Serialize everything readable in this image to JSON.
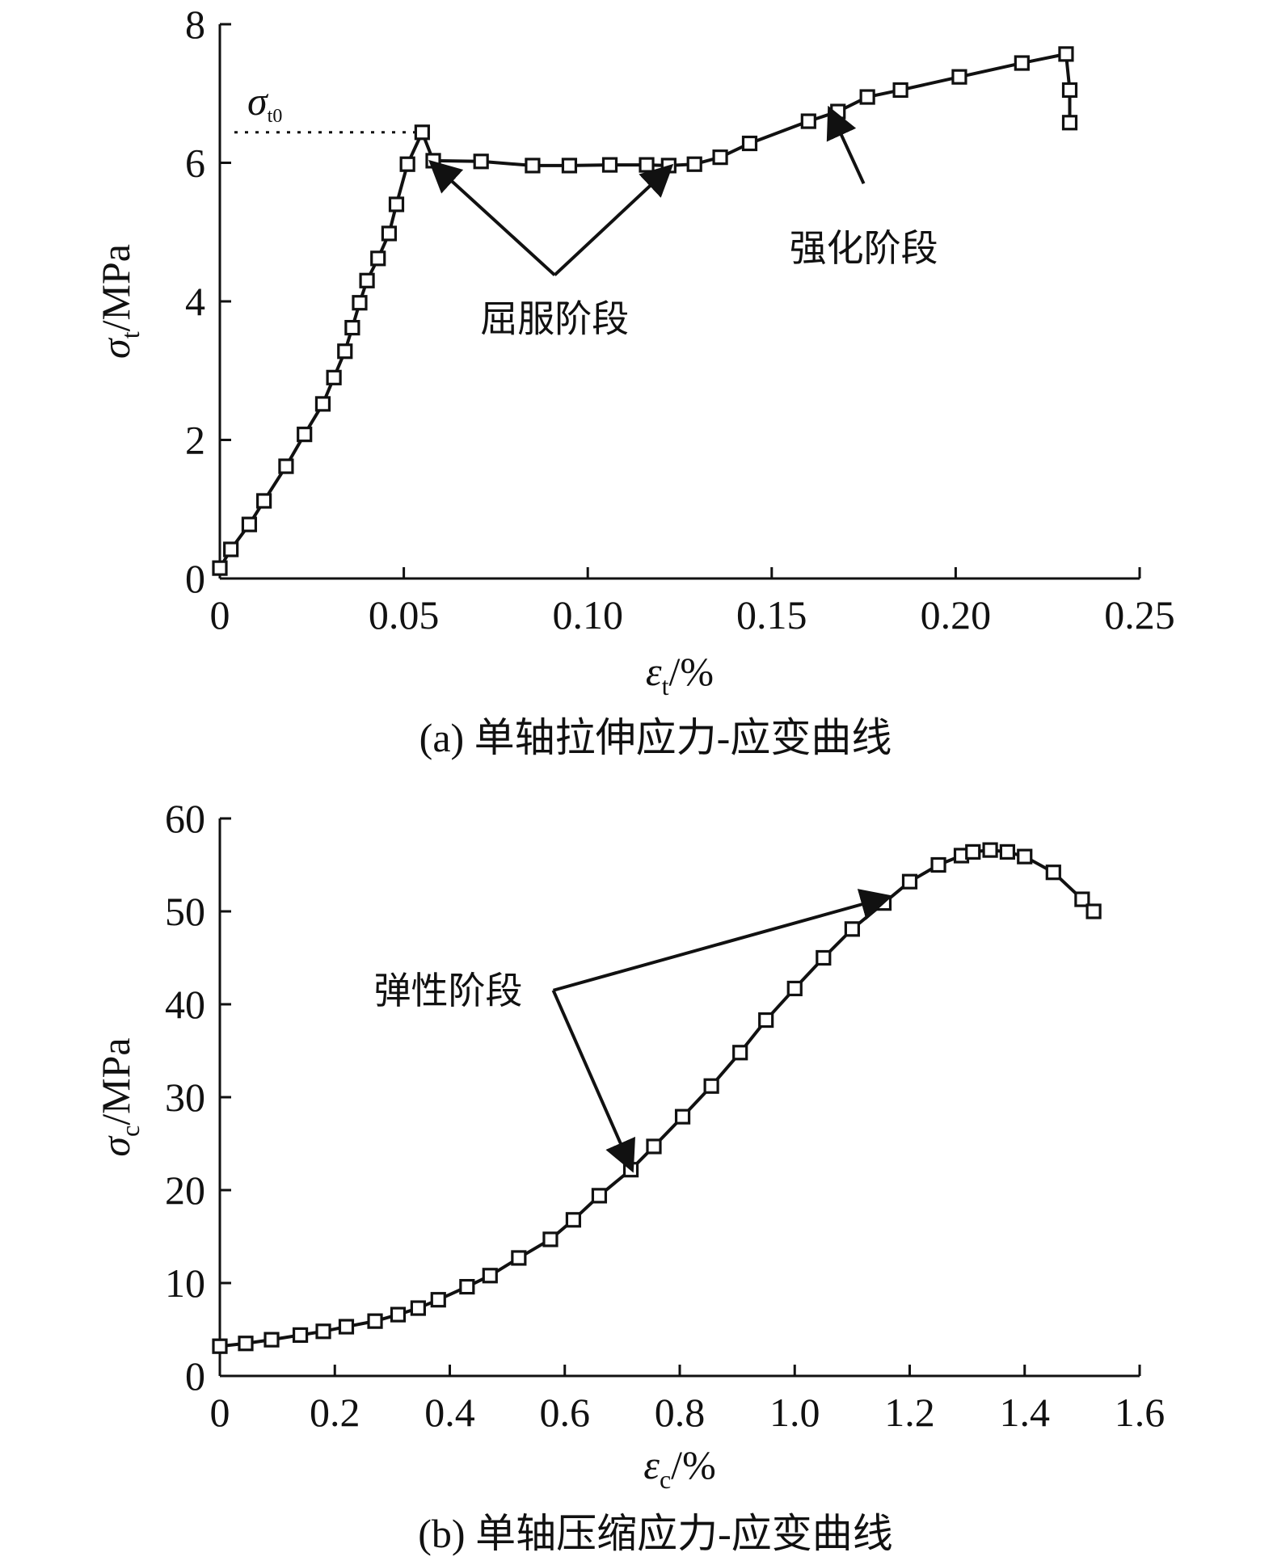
{
  "chart_data": [
    {
      "type": "line",
      "caption": "(a) 单轴拉伸应力-应变曲线",
      "xlabel": {
        "symbol": "ε",
        "sub": "t",
        "unit": "/%"
      },
      "ylabel": {
        "symbol": "σ",
        "sub": "t",
        "unit": "/MPa"
      },
      "xlim": [
        0,
        0.25
      ],
      "ylim": [
        0,
        8
      ],
      "xticks": [
        0,
        0.05,
        0.1,
        0.15,
        0.2,
        0.25
      ],
      "xtick_labels": [
        "0",
        "0.05",
        "0.10",
        "0.15",
        "0.20",
        "0.25"
      ],
      "yticks": [
        0,
        2,
        4,
        6,
        8
      ],
      "ytick_labels": [
        "0",
        "2",
        "4",
        "6",
        "8"
      ],
      "grid": false,
      "marker": "square",
      "series": [
        {
          "x": [
            0,
            0.003,
            0.008,
            0.012,
            0.018,
            0.023,
            0.028,
            0.031,
            0.034,
            0.036,
            0.038,
            0.04,
            0.043,
            0.046,
            0.048,
            0.051,
            0.055,
            0.058,
            0.071,
            0.085,
            0.095,
            0.106,
            0.116,
            0.122,
            0.129,
            0.136,
            0.144,
            0.16,
            0.168,
            0.176,
            0.185,
            0.201,
            0.218,
            0.23,
            0.231,
            0.231
          ],
          "y": [
            0.15,
            0.42,
            0.78,
            1.12,
            1.62,
            2.08,
            2.52,
            2.9,
            3.28,
            3.62,
            3.98,
            4.3,
            4.62,
            4.98,
            5.4,
            5.98,
            6.44,
            6.03,
            6.02,
            5.96,
            5.96,
            5.97,
            5.97,
            5.96,
            5.98,
            6.08,
            6.28,
            6.6,
            6.74,
            6.95,
            7.05,
            7.24,
            7.44,
            7.57,
            7.05,
            6.58
          ]
        }
      ],
      "reference": {
        "label": "σ",
        "label_sub": "t0",
        "y": 6.44,
        "x_end": 0.055
      },
      "annotations": [
        {
          "text": "屈服阶段",
          "x": 0.091,
          "y": 4.38,
          "targets": [
            [
              0.058,
              5.98
            ],
            [
              0.122,
              5.92
            ]
          ]
        },
        {
          "text": "强化阶段",
          "x": 0.175,
          "y": 5.7,
          "targets": [
            [
              0.166,
              6.74
            ]
          ]
        }
      ]
    },
    {
      "type": "line",
      "caption": "(b) 单轴压缩应力-应变曲线",
      "xlabel": {
        "symbol": "ε",
        "sub": "c",
        "unit": "/%"
      },
      "ylabel": {
        "symbol": "σ",
        "sub": "c",
        "unit": "/MPa"
      },
      "xlim": [
        0,
        1.6
      ],
      "ylim": [
        0,
        60
      ],
      "xticks": [
        0,
        0.2,
        0.4,
        0.6,
        0.8,
        1.0,
        1.2,
        1.4,
        1.6
      ],
      "xtick_labels": [
        "0",
        "0.2",
        "0.4",
        "0.6",
        "0.8",
        "1.0",
        "1.2",
        "1.4",
        "1.6"
      ],
      "yticks": [
        0,
        10,
        20,
        30,
        40,
        50,
        60
      ],
      "ytick_labels": [
        "0",
        "10",
        "20",
        "30",
        "40",
        "50",
        "60"
      ],
      "grid": false,
      "marker": "square",
      "series": [
        {
          "x": [
            0,
            0.045,
            0.09,
            0.14,
            0.18,
            0.22,
            0.27,
            0.31,
            0.345,
            0.38,
            0.43,
            0.47,
            0.52,
            0.575,
            0.615,
            0.66,
            0.715,
            0.755,
            0.805,
            0.855,
            0.905,
            0.95,
            1.0,
            1.05,
            1.1,
            1.155,
            1.2,
            1.25,
            1.29,
            1.31,
            1.34,
            1.37,
            1.4,
            1.45,
            1.5,
            1.52
          ],
          "y": [
            3.2,
            3.5,
            3.9,
            4.4,
            4.8,
            5.3,
            5.9,
            6.6,
            7.3,
            8.2,
            9.6,
            10.8,
            12.7,
            14.7,
            16.8,
            19.4,
            22.2,
            24.7,
            27.9,
            31.2,
            34.8,
            38.3,
            41.7,
            45.0,
            48.1,
            50.9,
            53.2,
            55.0,
            56.0,
            56.4,
            56.6,
            56.4,
            55.9,
            54.2,
            51.3,
            50.0
          ]
        }
      ],
      "annotations": [
        {
          "text": "弹性阶段",
          "x": 0.58,
          "y": 41.5,
          "targets": [
            [
              1.16,
              51.5
            ],
            [
              0.715,
              22.5
            ]
          ]
        }
      ]
    }
  ]
}
